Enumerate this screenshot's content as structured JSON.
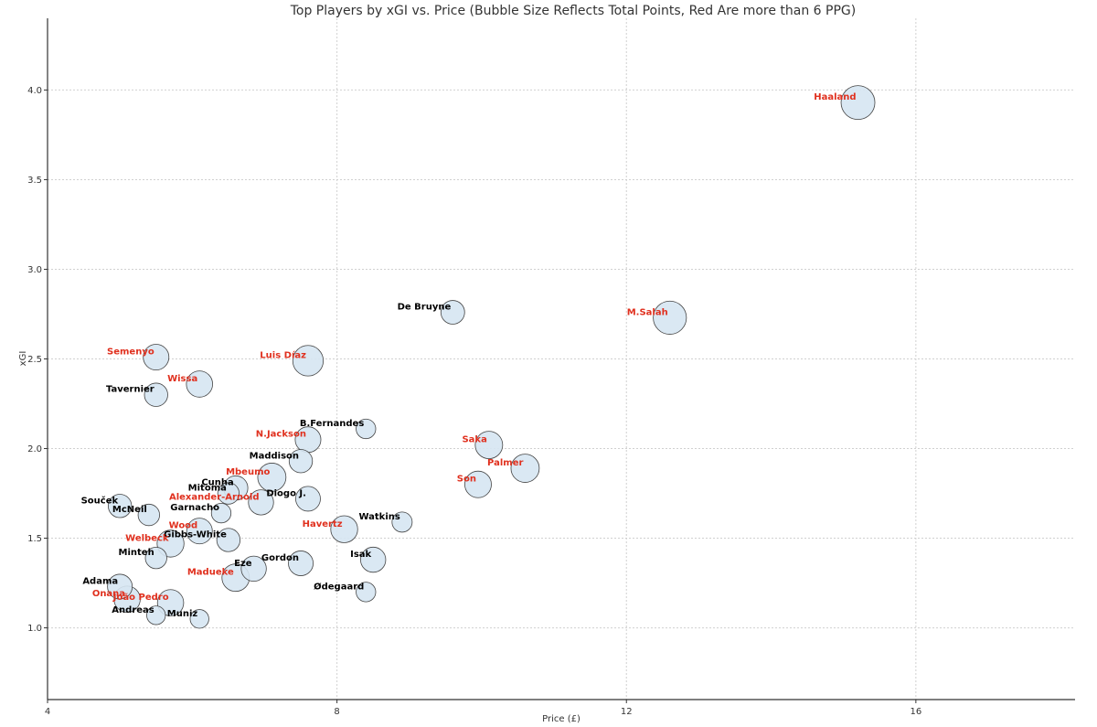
{
  "chart_data": {
    "type": "scatter",
    "title": "Top Players by xGI vs. Price (Bubble Size Reflects Total Points, Red Are more than 6 PPG)",
    "xlabel": "Price (£)",
    "ylabel": "xGI",
    "xlim": [
      4,
      18.2
    ],
    "ylim": [
      0.6,
      4.4
    ],
    "xticks": [
      4,
      8,
      12,
      16
    ],
    "yticks": [
      1.0,
      1.5,
      2.0,
      2.5,
      3.0,
      3.5,
      4.0
    ],
    "grid": true,
    "colors": {
      "bubble_fill": "#d6e6f2",
      "bubble_stroke": "#444444",
      "label_default": "#000000",
      "label_highlight": "#e0301e",
      "grid": "#d0d0d0",
      "axis": "#333333"
    },
    "points": [
      {
        "label": "Haaland",
        "x": 15.2,
        "y": 3.93,
        "points_size": 100,
        "highlight": true
      },
      {
        "label": "M.Salah",
        "x": 12.6,
        "y": 2.73,
        "points_size": 95,
        "highlight": true
      },
      {
        "label": "De Bruyne",
        "x": 9.6,
        "y": 2.76,
        "points_size": 35,
        "highlight": false
      },
      {
        "label": "Luis Díaz",
        "x": 7.6,
        "y": 2.49,
        "points_size": 75,
        "highlight": true
      },
      {
        "label": "Semenyo",
        "x": 5.5,
        "y": 2.51,
        "points_size": 45,
        "highlight": true
      },
      {
        "label": "Wissa",
        "x": 6.1,
        "y": 2.36,
        "points_size": 48,
        "highlight": true
      },
      {
        "label": "Tavernier",
        "x": 5.5,
        "y": 2.3,
        "points_size": 33,
        "highlight": false
      },
      {
        "label": "B.Fernandes",
        "x": 8.4,
        "y": 2.11,
        "points_size": 18,
        "highlight": false
      },
      {
        "label": "N.Jackson",
        "x": 7.6,
        "y": 2.05,
        "points_size": 45,
        "highlight": true
      },
      {
        "label": "Saka",
        "x": 10.1,
        "y": 2.02,
        "points_size": 55,
        "highlight": true
      },
      {
        "label": "Maddison",
        "x": 7.5,
        "y": 1.93,
        "points_size": 33,
        "highlight": false
      },
      {
        "label": "Palmer",
        "x": 10.6,
        "y": 1.89,
        "points_size": 60,
        "highlight": true
      },
      {
        "label": "Mbeumo",
        "x": 7.1,
        "y": 1.84,
        "points_size": 60,
        "highlight": true
      },
      {
        "label": "Son",
        "x": 9.95,
        "y": 1.8,
        "points_size": 50,
        "highlight": true
      },
      {
        "label": "Cunha",
        "x": 6.6,
        "y": 1.78,
        "points_size": 38,
        "highlight": false
      },
      {
        "label": "Mitoma",
        "x": 6.5,
        "y": 1.75,
        "points_size": 25,
        "highlight": false
      },
      {
        "label": "Diogo J.",
        "x": 7.6,
        "y": 1.72,
        "points_size": 40,
        "highlight": false
      },
      {
        "label": "Alexander-Arnold",
        "x": 6.95,
        "y": 1.7,
        "points_size": 42,
        "highlight": true
      },
      {
        "label": "Souček",
        "x": 5.0,
        "y": 1.68,
        "points_size": 33,
        "highlight": false
      },
      {
        "label": "Garnacho",
        "x": 6.4,
        "y": 1.64,
        "points_size": 18,
        "highlight": false
      },
      {
        "label": "McNeil",
        "x": 5.4,
        "y": 1.63,
        "points_size": 25,
        "highlight": false
      },
      {
        "label": "Watkins",
        "x": 8.9,
        "y": 1.59,
        "points_size": 20,
        "highlight": false
      },
      {
        "label": "Havertz",
        "x": 8.1,
        "y": 1.55,
        "points_size": 52,
        "highlight": true
      },
      {
        "label": "Wood",
        "x": 6.1,
        "y": 1.54,
        "points_size": 45,
        "highlight": true
      },
      {
        "label": "Gibbs-White",
        "x": 6.5,
        "y": 1.49,
        "points_size": 33,
        "highlight": false
      },
      {
        "label": "Welbeck",
        "x": 5.7,
        "y": 1.47,
        "points_size": 52,
        "highlight": true
      },
      {
        "label": "Minteh",
        "x": 5.5,
        "y": 1.39,
        "points_size": 25,
        "highlight": false
      },
      {
        "label": "Isak",
        "x": 8.5,
        "y": 1.38,
        "points_size": 42,
        "highlight": false
      },
      {
        "label": "Gordon",
        "x": 7.5,
        "y": 1.36,
        "points_size": 40,
        "highlight": false
      },
      {
        "label": "Eze",
        "x": 6.85,
        "y": 1.33,
        "points_size": 42,
        "highlight": false
      },
      {
        "label": "Madueke",
        "x": 6.6,
        "y": 1.28,
        "points_size": 55,
        "highlight": true
      },
      {
        "label": "Adama",
        "x": 5.0,
        "y": 1.23,
        "points_size": 40,
        "highlight": false
      },
      {
        "label": "Ødegaard",
        "x": 8.4,
        "y": 1.2,
        "points_size": 18,
        "highlight": false
      },
      {
        "label": "Onana",
        "x": 5.1,
        "y": 1.16,
        "points_size": 48,
        "highlight": true
      },
      {
        "label": "João Pedro",
        "x": 5.7,
        "y": 1.14,
        "points_size": 48,
        "highlight": true
      },
      {
        "label": "Andreas",
        "x": 5.5,
        "y": 1.07,
        "points_size": 15,
        "highlight": false
      },
      {
        "label": "Muniz",
        "x": 6.1,
        "y": 1.05,
        "points_size": 15,
        "highlight": false
      }
    ]
  }
}
